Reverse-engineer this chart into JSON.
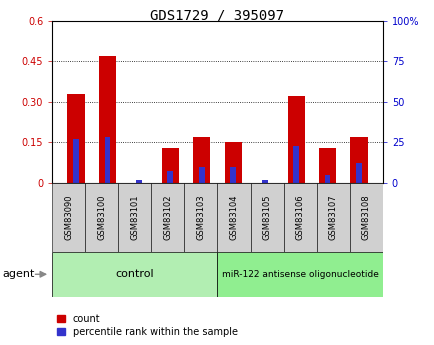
{
  "title": "GDS1729 / 395097",
  "samples": [
    "GSM83090",
    "GSM83100",
    "GSM83101",
    "GSM83102",
    "GSM83103",
    "GSM83104",
    "GSM83105",
    "GSM83106",
    "GSM83107",
    "GSM83108"
  ],
  "count": [
    0.33,
    0.47,
    0.0,
    0.13,
    0.17,
    0.15,
    0.0,
    0.32,
    0.13,
    0.17
  ],
  "percentile": [
    27,
    28,
    2,
    7,
    10,
    10,
    2,
    23,
    5,
    12
  ],
  "n_control": 5,
  "n_treatment": 5,
  "control_label": "control",
  "treatment_label": "miR-122 antisense oligonucleotide",
  "agent_label": "agent",
  "ylim_left": [
    0,
    0.6
  ],
  "ylim_right": [
    0,
    100
  ],
  "yticks_left": [
    0,
    0.15,
    0.3,
    0.45,
    0.6
  ],
  "yticks_right": [
    0,
    25,
    50,
    75,
    100
  ],
  "ytick_labels_left": [
    "0",
    "0.15",
    "0.30",
    "0.45",
    "0.6"
  ],
  "ytick_labels_right": [
    "0",
    "25",
    "50",
    "75",
    "100%"
  ],
  "red_color": "#CC0000",
  "blue_color": "#3333CC",
  "control_bg": "#B2EEB2",
  "treatment_bg": "#90EE90",
  "gray_bg": "#D0D0D0",
  "background_color": "#FFFFFF",
  "grid_color": "black",
  "title_fontsize": 10,
  "tick_fontsize": 7,
  "sample_fontsize": 6,
  "legend_fontsize": 7,
  "agent_fontsize": 8,
  "label_color_left": "#CC0000",
  "label_color_right": "#0000CC",
  "legend_count": "count",
  "legend_percentile": "percentile rank within the sample"
}
